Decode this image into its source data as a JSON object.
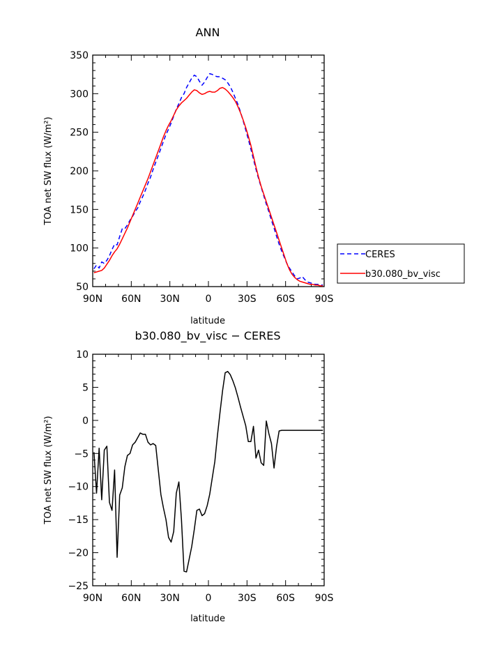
{
  "chart_data": [
    {
      "type": "line",
      "title": "ANN",
      "xlabel": "latitude",
      "ylabel": "TOA net SW flux (W/m²)",
      "xlim": [
        90,
        -90
      ],
      "ylim": [
        50,
        350
      ],
      "xticks": [
        90,
        60,
        30,
        0,
        -30,
        -60,
        -90
      ],
      "xtick_labels": [
        "90N",
        "60N",
        "30N",
        "0",
        "30S",
        "60S",
        "90S"
      ],
      "yticks": [
        50,
        100,
        150,
        200,
        250,
        300,
        350
      ],
      "ytick_labels": [
        "50",
        "100",
        "150",
        "200",
        "250",
        "300",
        "350"
      ],
      "legend_position": "right",
      "series": [
        {
          "name": "CERES",
          "style": "dashed",
          "color": "#0000ff",
          "x": [
            89,
            87,
            85,
            83,
            81,
            79,
            77,
            75,
            73,
            71,
            69,
            67,
            65,
            63,
            61,
            59,
            57,
            55,
            53,
            51,
            49,
            47,
            45,
            43,
            41,
            39,
            37,
            35,
            33,
            31,
            29,
            27,
            25,
            23,
            21,
            19,
            17,
            15,
            13,
            11,
            9,
            7,
            5,
            3,
            1,
            -1,
            -3,
            -5,
            -7,
            -9,
            -11,
            -13,
            -15,
            -17,
            -19,
            -21,
            -23,
            -25,
            -27,
            -29,
            -31,
            -33,
            -35,
            -37,
            -39,
            -41,
            -43,
            -45,
            -47,
            -49,
            -51,
            -53,
            -55,
            -57,
            -59,
            -61,
            -63,
            -65,
            -67,
            -69,
            -71,
            -73,
            -75,
            -77,
            -79,
            -81,
            -83,
            -85,
            -87,
            -89
          ],
          "y": [
            73,
            78,
            74,
            82,
            80,
            84,
            90,
            98,
            105,
            104,
            115,
            125,
            125,
            130,
            136,
            141,
            147,
            152,
            160,
            167,
            175,
            184,
            192,
            202,
            211,
            220,
            229,
            238,
            247,
            254,
            262,
            271,
            280,
            287,
            295,
            300,
            308,
            314,
            320,
            324,
            322,
            316,
            311,
            315,
            321,
            326,
            325,
            323,
            322,
            322,
            320,
            318,
            314,
            309,
            302,
            294,
            286,
            276,
            265,
            253,
            241,
            228,
            215,
            202,
            190,
            179,
            168,
            157,
            147,
            136,
            126,
            115,
            105,
            96,
            88,
            80,
            74,
            69,
            64,
            60,
            61,
            63,
            59,
            56,
            55,
            54,
            53,
            53,
            52,
            52
          ]
        },
        {
          "name": "b30.080_bv_visc",
          "style": "solid",
          "color": "#ff0000",
          "x": [
            89,
            87,
            85,
            83,
            81,
            79,
            77,
            75,
            73,
            71,
            69,
            67,
            65,
            63,
            61,
            59,
            57,
            55,
            53,
            51,
            49,
            47,
            45,
            43,
            41,
            39,
            37,
            35,
            33,
            31,
            29,
            27,
            25,
            23,
            21,
            19,
            17,
            15,
            13,
            11,
            9,
            7,
            5,
            3,
            1,
            -1,
            -3,
            -5,
            -7,
            -9,
            -11,
            -13,
            -15,
            -17,
            -19,
            -21,
            -23,
            -25,
            -27,
            -29,
            -31,
            -33,
            -35,
            -37,
            -39,
            -41,
            -43,
            -45,
            -47,
            -49,
            -51,
            -53,
            -55,
            -57,
            -59,
            -61,
            -63,
            -65,
            -67,
            -69,
            -71,
            -73,
            -75,
            -77,
            -79,
            -81,
            -83,
            -85,
            -87,
            -89
          ],
          "y": [
            68,
            69,
            70,
            71,
            74,
            79,
            84,
            90,
            95,
            99,
            105,
            112,
            119,
            126,
            134,
            142,
            150,
            158,
            166,
            174,
            182,
            190,
            199,
            208,
            217,
            226,
            235,
            244,
            252,
            259,
            265,
            272,
            279,
            284,
            288,
            291,
            294,
            298,
            302,
            305,
            304,
            301,
            299,
            300,
            302,
            303,
            302,
            302,
            304,
            307,
            308,
            306,
            303,
            299,
            295,
            290,
            283,
            275,
            266,
            256,
            245,
            233,
            219,
            205,
            192,
            180,
            170,
            160,
            150,
            140,
            130,
            120,
            110,
            100,
            90,
            80,
            72,
            66,
            62,
            59,
            57,
            56,
            55,
            54,
            53,
            53,
            52,
            52,
            51,
            51
          ]
        }
      ]
    },
    {
      "type": "line",
      "title": "b30.080_bv_visc − CERES",
      "xlabel": "latitude",
      "ylabel": "TOA net SW flux (W/m²)",
      "xlim": [
        90,
        -90
      ],
      "ylim": [
        -25,
        10
      ],
      "xticks": [
        90,
        60,
        30,
        0,
        -30,
        -60,
        -90
      ],
      "xtick_labels": [
        "90N",
        "60N",
        "30N",
        "0",
        "30S",
        "60S",
        "90S"
      ],
      "yticks": [
        -25,
        -20,
        -15,
        -10,
        -5,
        0,
        5,
        10
      ],
      "ytick_labels": [
        "−25",
        "−20",
        "−15",
        "−10",
        "−5",
        "0",
        "5",
        "10"
      ],
      "series": [
        {
          "name": "",
          "style": "solid",
          "color": "#000000",
          "x": [
            89,
            87,
            85,
            83,
            81,
            79,
            77,
            75,
            73,
            71,
            69,
            67,
            65,
            63,
            61,
            59,
            57,
            55,
            53,
            51,
            49,
            47,
            45,
            43,
            41,
            39,
            37,
            35,
            33,
            31,
            29,
            27,
            25,
            23,
            21,
            19,
            17,
            15,
            13,
            11,
            9,
            7,
            5,
            3,
            1,
            -1,
            -3,
            -5,
            -7,
            -9,
            -11,
            -13,
            -15,
            -17,
            -19,
            -21,
            -23,
            -25,
            -27,
            -29,
            -31,
            -33,
            -35,
            -37,
            -39,
            -41,
            -43,
            -45,
            -47,
            -49,
            -51,
            -53,
            -55,
            -57,
            -59,
            -61,
            -63,
            -65,
            -67,
            -69,
            -71,
            -73,
            -75,
            -77,
            -79,
            -81,
            -83,
            -85,
            -87,
            -89
          ],
          "y": [
            -4.8,
            -11.0,
            -4.2,
            -12.0,
            -4.5,
            -3.9,
            -12.4,
            -13.6,
            -7.5,
            -20.7,
            -11.3,
            -10.2,
            -7.0,
            -5.3,
            -5.0,
            -3.7,
            -3.3,
            -2.6,
            -1.9,
            -2.1,
            -2.1,
            -3.3,
            -3.7,
            -3.5,
            -3.8,
            -7.5,
            -11.2,
            -13.2,
            -15.0,
            -17.7,
            -18.4,
            -16.8,
            -11.0,
            -9.3,
            -15.0,
            -22.8,
            -22.9,
            -21.0,
            -19.1,
            -16.5,
            -13.6,
            -13.4,
            -14.4,
            -14.1,
            -12.9,
            -11.2,
            -8.7,
            -6.2,
            -2.3,
            1.2,
            4.5,
            7.2,
            7.4,
            6.9,
            6.0,
            4.9,
            3.5,
            2.0,
            0.6,
            -0.8,
            -3.2,
            -3.2,
            -0.9,
            -5.7,
            -4.5,
            -6.4,
            -6.8,
            -0.1,
            -2.0,
            -3.5,
            -7.2,
            -3.9,
            -1.6,
            -1.5,
            -1.5,
            -1.5,
            -1.5,
            -1.5,
            -1.5,
            -1.5,
            -1.5,
            -1.5,
            -1.5,
            -1.5,
            -1.5,
            -1.5,
            -1.5,
            -1.5,
            -1.5,
            -1.5
          ]
        }
      ]
    }
  ],
  "legend": {
    "items": [
      {
        "label": "CERES",
        "color": "#0000ff",
        "style": "dashed"
      },
      {
        "label": "b30.080_bv_visc",
        "color": "#ff0000",
        "style": "solid"
      }
    ]
  }
}
